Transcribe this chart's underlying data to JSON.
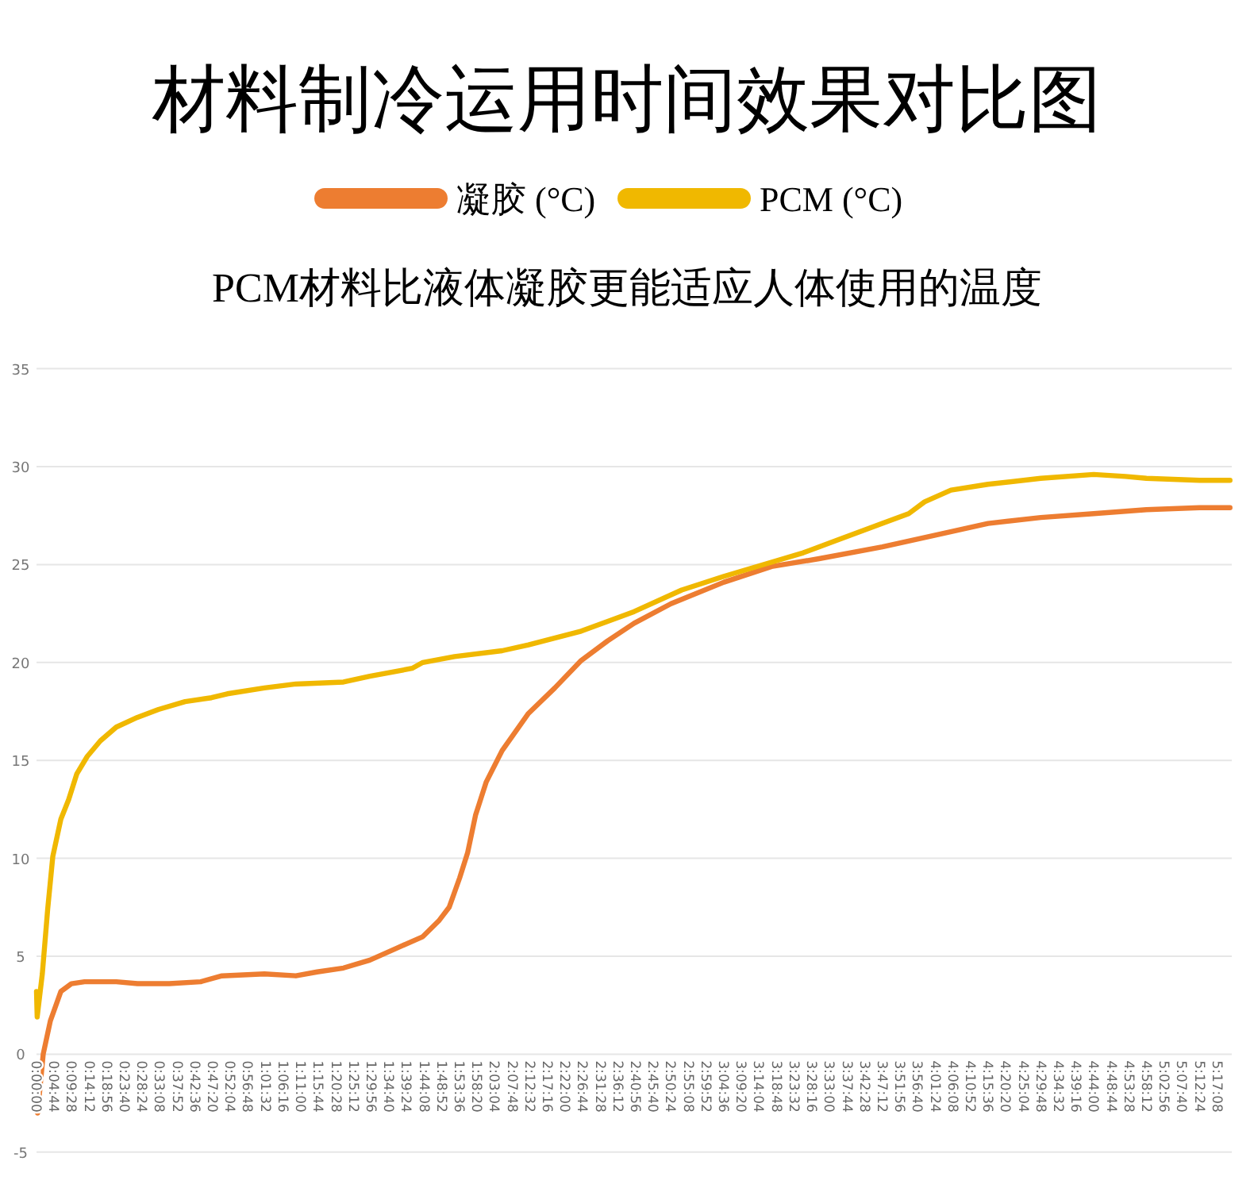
{
  "chart_data": {
    "type": "line",
    "title": "材料制冷运用时间效果对比图",
    "subtitle": "PCM材料比液体凝胶更能适应人体使用的温度",
    "legend": "top",
    "grid": "y",
    "line_style": "solid",
    "marker": "none",
    "xlim": [
      0,
      5.35
    ],
    "ylim": [
      -5,
      35
    ],
    "yticks": [
      -5,
      0,
      5,
      10,
      15,
      20,
      25,
      30,
      35
    ],
    "xticks": [
      {
        "value": 0,
        "label": "0:00:00"
      },
      {
        "value": 0.0789,
        "label": "0:04:44"
      },
      {
        "value": 0.1578,
        "label": "0:09:28"
      },
      {
        "value": 0.2367,
        "label": "0:14:12"
      },
      {
        "value": 0.3156,
        "label": "0:18:56"
      },
      {
        "value": 0.3944,
        "label": "0:23:40"
      },
      {
        "value": 0.4733,
        "label": "0:28:24"
      },
      {
        "value": 0.5522,
        "label": "0:33:08"
      },
      {
        "value": 0.6311,
        "label": "0:37:52"
      },
      {
        "value": 0.71,
        "label": "0:42:36"
      },
      {
        "value": 0.7889,
        "label": "0:47:20"
      },
      {
        "value": 0.8678,
        "label": "0:52:04"
      },
      {
        "value": 0.9467,
        "label": "0:56:48"
      },
      {
        "value": 1.0256,
        "label": "1:01:32"
      },
      {
        "value": 1.1044,
        "label": "1:06:16"
      },
      {
        "value": 1.1833,
        "label": "1:11:00"
      },
      {
        "value": 1.2622,
        "label": "1:15:44"
      },
      {
        "value": 1.3411,
        "label": "1:20:28"
      },
      {
        "value": 1.42,
        "label": "1:25:12"
      },
      {
        "value": 1.4989,
        "label": "1:29:56"
      },
      {
        "value": 1.5778,
        "label": "1:34:40"
      },
      {
        "value": 1.6567,
        "label": "1:39:24"
      },
      {
        "value": 1.7356,
        "label": "1:44:08"
      },
      {
        "value": 1.8144,
        "label": "1:48:52"
      },
      {
        "value": 1.8933,
        "label": "1:53:36"
      },
      {
        "value": 1.9722,
        "label": "1:58:20"
      },
      {
        "value": 2.0511,
        "label": "2:03:04"
      },
      {
        "value": 2.13,
        "label": "2:07:48"
      },
      {
        "value": 2.2089,
        "label": "2:12:32"
      },
      {
        "value": 2.2878,
        "label": "2:17:16"
      },
      {
        "value": 2.3667,
        "label": "2:22:00"
      },
      {
        "value": 2.4456,
        "label": "2:26:44"
      },
      {
        "value": 2.5244,
        "label": "2:31:28"
      },
      {
        "value": 2.6033,
        "label": "2:36:12"
      },
      {
        "value": 2.6822,
        "label": "2:40:56"
      },
      {
        "value": 2.7611,
        "label": "2:45:40"
      },
      {
        "value": 2.84,
        "label": "2:50:24"
      },
      {
        "value": 2.9189,
        "label": "2:55:08"
      },
      {
        "value": 2.9978,
        "label": "2:59:52"
      },
      {
        "value": 3.0767,
        "label": "3:04:36"
      },
      {
        "value": 3.1556,
        "label": "3:09:20"
      },
      {
        "value": 3.2344,
        "label": "3:14:04"
      },
      {
        "value": 3.3133,
        "label": "3:18:48"
      },
      {
        "value": 3.3922,
        "label": "3:23:32"
      },
      {
        "value": 3.4711,
        "label": "3:28:16"
      },
      {
        "value": 3.55,
        "label": "3:33:00"
      },
      {
        "value": 3.6289,
        "label": "3:37:44"
      },
      {
        "value": 3.7078,
        "label": "3:42:28"
      },
      {
        "value": 3.7867,
        "label": "3:47:12"
      },
      {
        "value": 3.8656,
        "label": "3:51:56"
      },
      {
        "value": 3.9444,
        "label": "3:56:40"
      },
      {
        "value": 4.0233,
        "label": "4:01:24"
      },
      {
        "value": 4.1022,
        "label": "4:06:08"
      },
      {
        "value": 4.1811,
        "label": "4:10:52"
      },
      {
        "value": 4.26,
        "label": "4:15:36"
      },
      {
        "value": 4.3389,
        "label": "4:20:20"
      },
      {
        "value": 4.4178,
        "label": "4:25:04"
      },
      {
        "value": 4.4967,
        "label": "4:29:48"
      },
      {
        "value": 4.5756,
        "label": "4:34:32"
      },
      {
        "value": 4.6544,
        "label": "4:39:16"
      },
      {
        "value": 4.7333,
        "label": "4:44:00"
      },
      {
        "value": 4.8122,
        "label": "4:48:44"
      },
      {
        "value": 4.8911,
        "label": "4:53:28"
      },
      {
        "value": 4.97,
        "label": "4:58:12"
      },
      {
        "value": 5.0489,
        "label": "5:02:56"
      },
      {
        "value": 5.1278,
        "label": "5:07:40"
      },
      {
        "value": 5.2067,
        "label": "5:12:24"
      },
      {
        "value": 5.2856,
        "label": "5:17:08"
      }
    ],
    "series": [
      {
        "name": "凝胶 (°C)",
        "color": "#ed7d31",
        "x": [
          0.005,
          0.03,
          0.062,
          0.109,
          0.156,
          0.215,
          0.357,
          0.452,
          0.594,
          0.735,
          0.83,
          1.02,
          1.161,
          1.256,
          1.374,
          1.492,
          1.61,
          1.729,
          1.8,
          1.847,
          1.894,
          1.93,
          1.965,
          2.013,
          2.084,
          2.202,
          2.32,
          2.438,
          2.556,
          2.675,
          2.84,
          3.077,
          3.29,
          3.503,
          3.786,
          4.023,
          4.259,
          4.495,
          4.732,
          4.968,
          5.205,
          5.342
        ],
        "values": [
          -3.0,
          0.0,
          1.7,
          3.2,
          3.6,
          3.7,
          3.7,
          3.6,
          3.6,
          3.7,
          4.0,
          4.1,
          4.0,
          4.2,
          4.4,
          4.8,
          5.4,
          6.0,
          6.8,
          7.5,
          9.0,
          10.3,
          12.2,
          13.9,
          15.5,
          17.4,
          18.7,
          20.1,
          21.1,
          22.0,
          23.0,
          24.1,
          24.9,
          25.3,
          25.9,
          26.5,
          27.1,
          27.4,
          27.6,
          27.8,
          27.9,
          27.9
        ]
      },
      {
        "name": "PCM (°C)",
        "color": "#f0b800",
        "x": [
          0,
          0.003,
          0.026,
          0.05,
          0.073,
          0.109,
          0.144,
          0.18,
          0.227,
          0.286,
          0.357,
          0.452,
          0.546,
          0.665,
          0.783,
          0.854,
          1.02,
          1.161,
          1.374,
          1.492,
          1.681,
          1.729,
          1.871,
          2.084,
          2.202,
          2.438,
          2.675,
          2.888,
          3.077,
          3.313,
          3.432,
          3.597,
          3.786,
          3.904,
          3.975,
          4.093,
          4.259,
          4.495,
          4.732,
          4.874,
          4.968,
          5.205,
          5.342
        ],
        "values": [
          3.2,
          1.9,
          4.1,
          7.4,
          10.1,
          12.0,
          13.0,
          14.3,
          15.2,
          16.0,
          16.7,
          17.2,
          17.6,
          18.0,
          18.2,
          18.4,
          18.7,
          18.9,
          19.0,
          19.3,
          19.7,
          20.0,
          20.3,
          20.6,
          20.9,
          21.6,
          22.6,
          23.7,
          24.4,
          25.2,
          25.6,
          26.3,
          27.1,
          27.6,
          28.2,
          28.8,
          29.1,
          29.4,
          29.6,
          29.5,
          29.4,
          29.3,
          29.3
        ]
      }
    ]
  }
}
